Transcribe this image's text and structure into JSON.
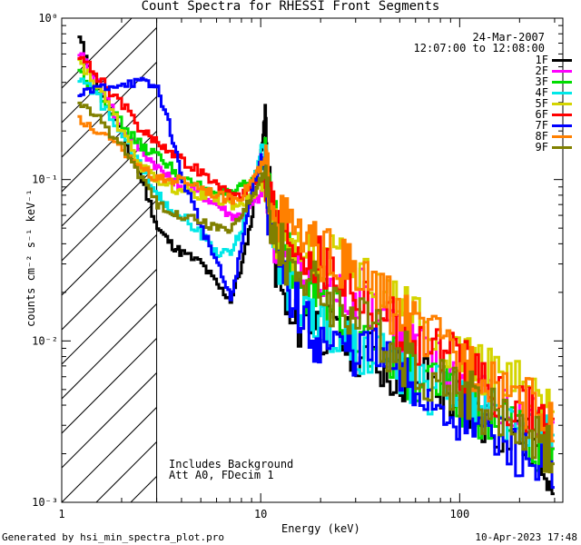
{
  "chart_data": {
    "type": "line",
    "title": "Count Spectra for RHESSI Front Segments",
    "xlabel": "Energy (keV)",
    "ylabel": "counts cm⁻² s⁻¹ keV⁻¹",
    "xscale": "log",
    "yscale": "log",
    "xlim": [
      1,
      330
    ],
    "ylim": [
      0.001,
      1
    ],
    "x_ticks": [
      "1",
      "10",
      "100"
    ],
    "y_ticks": [
      "10⁰",
      "10⁻¹",
      "10⁻²",
      "10⁻³"
    ],
    "shaded_region_max_energy_keV": 3,
    "x": [
      1.2,
      1.5,
      2,
      2.5,
      3,
      3.5,
      4,
      5,
      6,
      7,
      8,
      9,
      10,
      10.5,
      11,
      12,
      14,
      17,
      20,
      25,
      30,
      40,
      50,
      60,
      80,
      100,
      120,
      150,
      200,
      250,
      300
    ],
    "series": [
      {
        "name": "1F",
        "color": "#000000",
        "values": [
          0.75,
          0.38,
          0.18,
          0.1,
          0.05,
          0.04,
          0.035,
          0.03,
          0.022,
          0.018,
          0.03,
          0.06,
          0.15,
          0.25,
          0.08,
          0.025,
          0.012,
          0.014,
          0.012,
          0.01,
          0.009,
          0.007,
          0.006,
          0.006,
          0.005,
          0.004,
          0.0035,
          0.003,
          0.0025,
          0.002,
          0.0015
        ]
      },
      {
        "name": "2F",
        "color": "#ff00ff",
        "values": [
          0.62,
          0.4,
          0.2,
          0.15,
          0.12,
          0.1,
          0.09,
          0.08,
          0.07,
          0.06,
          0.06,
          0.07,
          0.08,
          0.09,
          0.06,
          0.04,
          0.03,
          0.025,
          0.022,
          0.02,
          0.02,
          0.017,
          0.011,
          0.009,
          0.007,
          0.006,
          0.005,
          0.004,
          0.0035,
          0.0028,
          0.002
        ]
      },
      {
        "name": "3F",
        "color": "#00dd00",
        "values": [
          0.47,
          0.35,
          0.21,
          0.16,
          0.14,
          0.12,
          0.1,
          0.09,
          0.085,
          0.08,
          0.09,
          0.1,
          0.12,
          0.13,
          0.08,
          0.045,
          0.03,
          0.022,
          0.018,
          0.015,
          0.012,
          0.008,
          0.007,
          0.006,
          0.005,
          0.004,
          0.0035,
          0.003,
          0.0025,
          0.002,
          0.0015
        ]
      },
      {
        "name": "4F",
        "color": "#00e8e8",
        "values": [
          0.43,
          0.32,
          0.18,
          0.12,
          0.08,
          0.065,
          0.06,
          0.045,
          0.035,
          0.035,
          0.05,
          0.09,
          0.16,
          0.15,
          0.07,
          0.035,
          0.02,
          0.015,
          0.012,
          0.01,
          0.009,
          0.008,
          0.006,
          0.0055,
          0.005,
          0.0045,
          0.004,
          0.0035,
          0.003,
          0.0025,
          0.002
        ]
      },
      {
        "name": "5F",
        "color": "#d4d400",
        "values": [
          0.55,
          0.37,
          0.19,
          0.12,
          0.1,
          0.09,
          0.085,
          0.08,
          0.075,
          0.07,
          0.07,
          0.08,
          0.09,
          0.1,
          0.065,
          0.045,
          0.04,
          0.035,
          0.032,
          0.03,
          0.028,
          0.022,
          0.018,
          0.015,
          0.011,
          0.009,
          0.007,
          0.006,
          0.005,
          0.004,
          0.003
        ]
      },
      {
        "name": "6F",
        "color": "#ff0000",
        "values": [
          0.6,
          0.43,
          0.29,
          0.2,
          0.17,
          0.15,
          0.13,
          0.11,
          0.09,
          0.08,
          0.08,
          0.09,
          0.1,
          0.11,
          0.08,
          0.055,
          0.045,
          0.035,
          0.03,
          0.025,
          0.02,
          0.015,
          0.012,
          0.01,
          0.008,
          0.007,
          0.006,
          0.005,
          0.004,
          0.0035,
          0.003
        ]
      },
      {
        "name": "7F",
        "color": "#0000ff",
        "values": [
          0.33,
          0.37,
          0.4,
          0.4,
          0.37,
          0.2,
          0.1,
          0.05,
          0.03,
          0.018,
          0.04,
          0.09,
          0.14,
          0.12,
          0.05,
          0.03,
          0.02,
          0.012,
          0.01,
          0.009,
          0.009,
          0.008,
          0.006,
          0.005,
          0.004,
          0.0035,
          0.003,
          0.0025,
          0.002,
          0.0016,
          0.0012
        ]
      },
      {
        "name": "8F",
        "color": "#ff8000",
        "values": [
          0.23,
          0.2,
          0.15,
          0.12,
          0.1,
          0.1,
          0.1,
          0.09,
          0.08,
          0.075,
          0.08,
          0.1,
          0.12,
          0.13,
          0.09,
          0.06,
          0.05,
          0.04,
          0.035,
          0.03,
          0.025,
          0.019,
          0.014,
          0.012,
          0.009,
          0.008,
          0.007,
          0.006,
          0.0045,
          0.0035,
          0.0025
        ]
      },
      {
        "name": "9F",
        "color": "#808000",
        "values": [
          0.3,
          0.24,
          0.16,
          0.1,
          0.07,
          0.065,
          0.06,
          0.055,
          0.05,
          0.05,
          0.06,
          0.08,
          0.1,
          0.11,
          0.065,
          0.04,
          0.03,
          0.025,
          0.02,
          0.017,
          0.014,
          0.01,
          0.008,
          0.007,
          0.0055,
          0.005,
          0.004,
          0.0035,
          0.003,
          0.0025,
          0.002
        ]
      }
    ]
  },
  "header": {
    "date": "24-Mar-2007",
    "time_range": "12:07:00 to 12:08:00"
  },
  "notes": {
    "line1": "Includes Background",
    "line2": "Att A0, FDecim 1"
  },
  "footer": {
    "left": "Generated by hsi_min_spectra_plot.pro",
    "right": "10-Apr-2023 17:48"
  }
}
